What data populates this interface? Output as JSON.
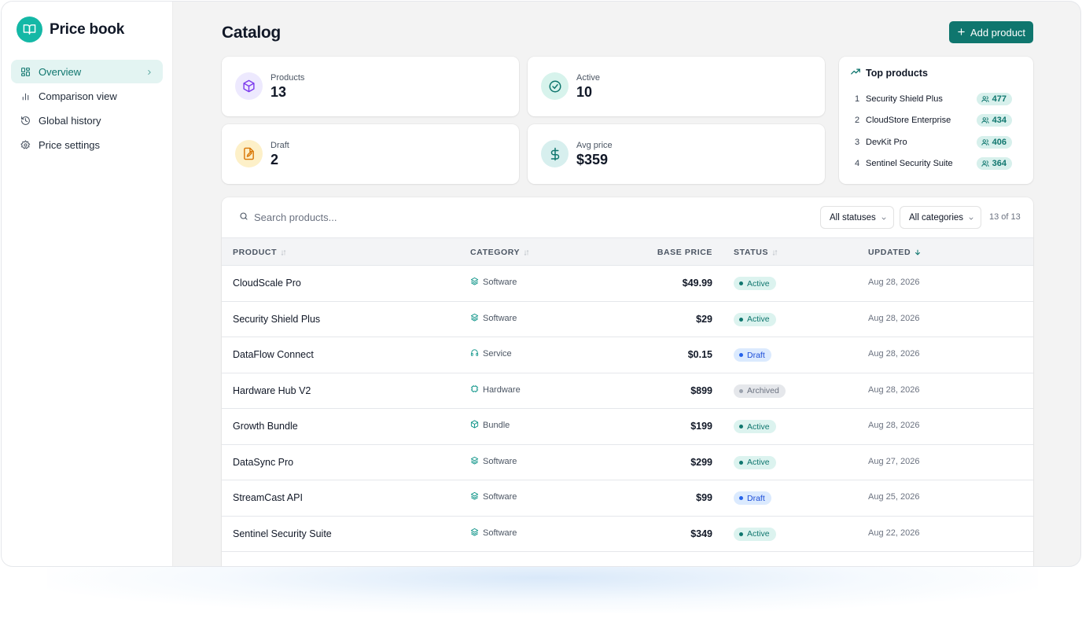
{
  "app": {
    "name": "Price book"
  },
  "sidebar": {
    "items": [
      {
        "label": "Overview",
        "icon": "dashboard-icon",
        "active": true
      },
      {
        "label": "Comparison view",
        "icon": "bar-chart-icon",
        "active": false
      },
      {
        "label": "Global history",
        "icon": "history-icon",
        "active": false
      },
      {
        "label": "Price settings",
        "icon": "gear-icon",
        "active": false
      }
    ]
  },
  "header": {
    "title": "Catalog",
    "add_button_label": "Add product"
  },
  "stats": {
    "products": {
      "label": "Products",
      "value": "13"
    },
    "active": {
      "label": "Active",
      "value": "10"
    },
    "draft": {
      "label": "Draft",
      "value": "2"
    },
    "avg_price": {
      "label": "Avg price",
      "value": "$359"
    }
  },
  "top_products": {
    "title": "Top products",
    "items": [
      {
        "rank": "1",
        "name": "Security Shield Plus",
        "count": "477"
      },
      {
        "rank": "2",
        "name": "CloudStore Enterprise",
        "count": "434"
      },
      {
        "rank": "3",
        "name": "DevKit Pro",
        "count": "406"
      },
      {
        "rank": "4",
        "name": "Sentinel Security Suite",
        "count": "364"
      }
    ]
  },
  "table": {
    "search_placeholder": "Search products...",
    "status_filter": "All statuses",
    "category_filter": "All categories",
    "count_text": "13 of 13",
    "columns": {
      "product": "PRODUCT",
      "category": "CATEGORY",
      "base_price": "BASE PRICE",
      "status": "STATUS",
      "updated": "UPDATED"
    },
    "rows": [
      {
        "name": "CloudScale Pro",
        "category": "Software",
        "price": "$49.99",
        "status": "Active",
        "updated": "Aug 28, 2026"
      },
      {
        "name": "Security Shield Plus",
        "category": "Software",
        "price": "$29",
        "status": "Active",
        "updated": "Aug 28, 2026"
      },
      {
        "name": "DataFlow Connect",
        "category": "Service",
        "price": "$0.15",
        "status": "Draft",
        "updated": "Aug 28, 2026"
      },
      {
        "name": "Hardware Hub V2",
        "category": "Hardware",
        "price": "$899",
        "status": "Archived",
        "updated": "Aug 28, 2026"
      },
      {
        "name": "Growth Bundle",
        "category": "Bundle",
        "price": "$199",
        "status": "Active",
        "updated": "Aug 28, 2026"
      },
      {
        "name": "DataSync Pro",
        "category": "Software",
        "price": "$299",
        "status": "Active",
        "updated": "Aug 27, 2026"
      },
      {
        "name": "StreamCast API",
        "category": "Software",
        "price": "$99",
        "status": "Draft",
        "updated": "Aug 25, 2026"
      },
      {
        "name": "Sentinel Security Suite",
        "category": "Software",
        "price": "$349",
        "status": "Active",
        "updated": "Aug 22, 2026"
      }
    ]
  },
  "colors": {
    "accent": "#0f766e",
    "brand": "#14b8a6",
    "active_badge": "#dcf3ef",
    "draft_badge": "#dbeafe",
    "archived_badge": "#e5e7eb"
  }
}
